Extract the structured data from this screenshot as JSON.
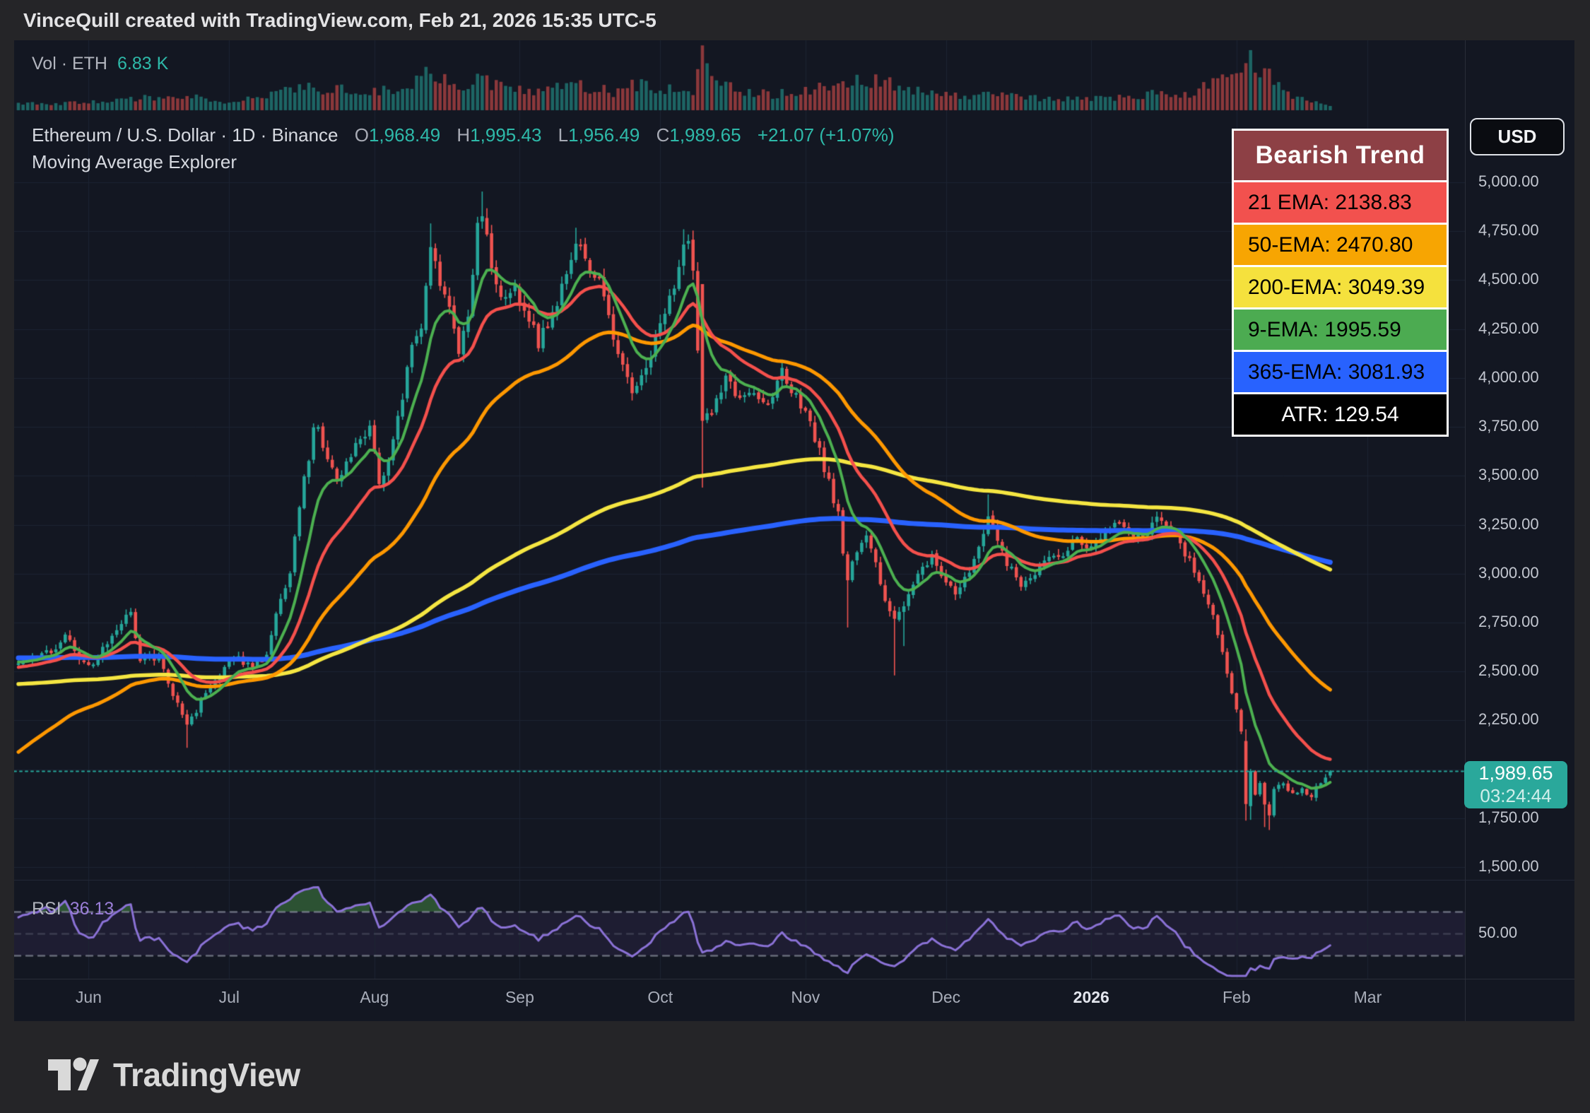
{
  "header": {
    "attribution": "VinceQuill created with TradingView.com, Feb 21, 2026 15:35 UTC-5"
  },
  "volume_pane": {
    "label": "Vol · ETH",
    "value": "6.83 K"
  },
  "symbol_line": {
    "name": "Ethereum / U.S. Dollar · 1D · Binance",
    "o_label": "O",
    "o": "1,968.49",
    "h_label": "H",
    "h": "1,995.43",
    "l_label": "L",
    "l": "1,956.49",
    "c_label": "C",
    "c": "1,989.65",
    "change": "+21.07 (+1.07%)"
  },
  "indicator_line": {
    "name": "Moving Average Explorer"
  },
  "rsi_pane": {
    "label": "RSI",
    "value": "36.13"
  },
  "price_scale": {
    "currency": "USD",
    "ticks": [
      {
        "label": "5,000.00",
        "value": 5000
      },
      {
        "label": "4,750.00",
        "value": 4750
      },
      {
        "label": "4,500.00",
        "value": 4500
      },
      {
        "label": "4,250.00",
        "value": 4250
      },
      {
        "label": "4,000.00",
        "value": 4000
      },
      {
        "label": "3,750.00",
        "value": 3750
      },
      {
        "label": "3,500.00",
        "value": 3500
      },
      {
        "label": "3,250.00",
        "value": 3250
      },
      {
        "label": "3,000.00",
        "value": 3000
      },
      {
        "label": "2,750.00",
        "value": 2750
      },
      {
        "label": "2,500.00",
        "value": 2500
      },
      {
        "label": "2,250.00",
        "value": 2250
      },
      {
        "label": "1,750.00",
        "value": 1750
      },
      {
        "label": "1,500.00",
        "value": 1500
      }
    ],
    "rsi_tick": {
      "label": "50.00",
      "value": 50
    },
    "price_tag": {
      "price": "1,989.65",
      "countdown": "03:24:44",
      "bg": "#2aa89b"
    }
  },
  "time_scale": {
    "labels": [
      {
        "label": "Jun",
        "day": 15
      },
      {
        "label": "Jul",
        "day": 45
      },
      {
        "label": "Aug",
        "day": 76
      },
      {
        "label": "Sep",
        "day": 107
      },
      {
        "label": "Oct",
        "day": 137
      },
      {
        "label": "Nov",
        "day": 168
      },
      {
        "label": "Dec",
        "day": 198
      },
      {
        "label": "2026",
        "day": 229,
        "bold": true
      },
      {
        "label": "Feb",
        "day": 260
      },
      {
        "label": "Mar",
        "day": 288
      }
    ]
  },
  "trend_box": {
    "title": {
      "text": "Bearish Trend",
      "bg": "#8d4045",
      "color": "#ffffff"
    },
    "rows": [
      {
        "text": "21 EMA: 2138.83",
        "bg": "#f2514e",
        "color": "#000000"
      },
      {
        "text": "50-EMA: 2470.80",
        "bg": "#f7a502",
        "color": "#000000"
      },
      {
        "text": "200-EMA: 3049.39",
        "bg": "#f5e13d",
        "color": "#000000"
      },
      {
        "text": "9-EMA: 1995.59",
        "bg": "#4cab51",
        "color": "#000000"
      },
      {
        "text": "365-EMA: 3081.93",
        "bg": "#2862fe",
        "color": "#000000"
      },
      {
        "text": "ATR: 129.54",
        "bg": "#000000",
        "color": "#ffffff",
        "center": true
      }
    ]
  },
  "footer": {
    "brand": "TradingView"
  },
  "chart_data": {
    "type": "candlestick",
    "symbol": "ETH/USD",
    "interval": "1D",
    "title": "Ethereum / U.S. Dollar · 1D · Binance",
    "days": 281,
    "ylim": [
      1380,
      5260
    ],
    "price_axis_step": 250,
    "current_price": 1989.65,
    "last_candle": {
      "open": 1968.49,
      "high": 1995.43,
      "low": 1956.49,
      "close": 1989.65
    },
    "close_anchors": [
      [
        0,
        2550
      ],
      [
        8,
        2615
      ],
      [
        10,
        2700
      ],
      [
        13,
        2560
      ],
      [
        15,
        2520
      ],
      [
        19,
        2650
      ],
      [
        22,
        2760
      ],
      [
        24,
        2820
      ],
      [
        26,
        2560
      ],
      [
        30,
        2575
      ],
      [
        33,
        2390
      ],
      [
        36,
        2240
      ],
      [
        38,
        2305
      ],
      [
        42,
        2470
      ],
      [
        46,
        2580
      ],
      [
        50,
        2515
      ],
      [
        53,
        2590
      ],
      [
        55,
        2780
      ],
      [
        58,
        3010
      ],
      [
        61,
        3480
      ],
      [
        63,
        3720
      ],
      [
        64,
        3740
      ],
      [
        66,
        3600
      ],
      [
        68,
        3480
      ],
      [
        70,
        3560
      ],
      [
        72,
        3660
      ],
      [
        75,
        3740
      ],
      [
        77,
        3470
      ],
      [
        78,
        3520
      ],
      [
        80,
        3680
      ],
      [
        82,
        3900
      ],
      [
        84,
        4160
      ],
      [
        86,
        4280
      ],
      [
        88,
        4700
      ],
      [
        90,
        4440
      ],
      [
        92,
        4360
      ],
      [
        94,
        4140
      ],
      [
        96,
        4330
      ],
      [
        98,
        4780
      ],
      [
        99,
        4850
      ],
      [
        101,
        4560
      ],
      [
        103,
        4400
      ],
      [
        106,
        4460
      ],
      [
        109,
        4310
      ],
      [
        111,
        4180
      ],
      [
        115,
        4380
      ],
      [
        119,
        4720
      ],
      [
        121,
        4620
      ],
      [
        124,
        4480
      ],
      [
        127,
        4200
      ],
      [
        131,
        3950
      ],
      [
        134,
        4050
      ],
      [
        137,
        4250
      ],
      [
        140,
        4480
      ],
      [
        142,
        4650
      ],
      [
        143,
        4690
      ],
      [
        144,
        4550
      ],
      [
        146,
        3760
      ],
      [
        148,
        3840
      ],
      [
        151,
        4010
      ],
      [
        154,
        3870
      ],
      [
        157,
        3940
      ],
      [
        160,
        3860
      ],
      [
        163,
        4040
      ],
      [
        166,
        3900
      ],
      [
        169,
        3780
      ],
      [
        171,
        3620
      ],
      [
        173,
        3460
      ],
      [
        175,
        3300
      ],
      [
        176,
        3100
      ],
      [
        177,
        2960
      ],
      [
        179,
        3120
      ],
      [
        181,
        3200
      ],
      [
        183,
        3050
      ],
      [
        185,
        2870
      ],
      [
        187,
        2760
      ],
      [
        189,
        2850
      ],
      [
        191,
        2940
      ],
      [
        193,
        3020
      ],
      [
        195,
        3080
      ],
      [
        198,
        2960
      ],
      [
        200,
        2890
      ],
      [
        203,
        3000
      ],
      [
        205,
        3120
      ],
      [
        207,
        3280
      ],
      [
        209,
        3180
      ],
      [
        211,
        3060
      ],
      [
        214,
        2940
      ],
      [
        217,
        3000
      ],
      [
        220,
        3080
      ],
      [
        223,
        3110
      ],
      [
        226,
        3170
      ],
      [
        229,
        3140
      ],
      [
        232,
        3210
      ],
      [
        235,
        3270
      ],
      [
        237,
        3210
      ],
      [
        240,
        3170
      ],
      [
        243,
        3300
      ],
      [
        245,
        3260
      ],
      [
        248,
        3140
      ],
      [
        251,
        3020
      ],
      [
        254,
        2860
      ],
      [
        256,
        2680
      ],
      [
        258,
        2500
      ],
      [
        260,
        2290
      ],
      [
        261,
        2180
      ],
      [
        262,
        1815
      ],
      [
        263,
        1988
      ],
      [
        264,
        1870
      ],
      [
        265,
        1940
      ],
      [
        266,
        1832
      ],
      [
        267,
        1775
      ],
      [
        268,
        1895
      ],
      [
        270,
        1930
      ],
      [
        272,
        1870
      ],
      [
        274,
        1905
      ],
      [
        276,
        1862
      ],
      [
        278,
        1940
      ],
      [
        280,
        1989.65
      ]
    ],
    "overrides": {
      "36": {
        "low": 2110
      },
      "88": {
        "high": 4790
      },
      "99": {
        "high": 4953
      },
      "119": {
        "high": 4768
      },
      "131": {
        "low": 3885
      },
      "142": {
        "high": 4760
      },
      "146": {
        "open": 4480,
        "low": 3440
      },
      "177": {
        "low": 2725
      },
      "187": {
        "low": 2480
      },
      "189": {
        "low": 2630
      },
      "207": {
        "high": 3405
      },
      "262": {
        "open": 2145,
        "low": 1738
      },
      "263": {
        "open": 1812,
        "low": 1742
      },
      "266": {
        "low": 1705
      },
      "267": {
        "low": 1690
      },
      "280": {
        "open": 1968.49,
        "high": 1995.43,
        "low": 1956.49,
        "close": 1989.65
      }
    },
    "volume_anchors": [
      [
        0,
        10
      ],
      [
        15,
        12
      ],
      [
        24,
        18
      ],
      [
        36,
        22
      ],
      [
        45,
        12
      ],
      [
        55,
        25
      ],
      [
        61,
        38
      ],
      [
        64,
        35
      ],
      [
        72,
        30
      ],
      [
        77,
        32
      ],
      [
        84,
        40
      ],
      [
        88,
        58
      ],
      [
        94,
        38
      ],
      [
        98,
        52
      ],
      [
        99,
        55
      ],
      [
        103,
        35
      ],
      [
        112,
        28
      ],
      [
        119,
        42
      ],
      [
        127,
        30
      ],
      [
        131,
        40
      ],
      [
        140,
        32
      ],
      [
        144,
        28
      ],
      [
        146,
        100
      ],
      [
        148,
        45
      ],
      [
        154,
        30
      ],
      [
        160,
        25
      ],
      [
        166,
        28
      ],
      [
        171,
        38
      ],
      [
        175,
        42
      ],
      [
        181,
        45
      ],
      [
        185,
        48
      ],
      [
        188,
        42
      ],
      [
        193,
        30
      ],
      [
        198,
        25
      ],
      [
        203,
        22
      ],
      [
        208,
        24
      ],
      [
        214,
        20
      ],
      [
        220,
        18
      ],
      [
        226,
        20
      ],
      [
        232,
        18
      ],
      [
        237,
        22
      ],
      [
        243,
        26
      ],
      [
        248,
        22
      ],
      [
        251,
        28
      ],
      [
        254,
        38
      ],
      [
        256,
        48
      ],
      [
        258,
        55
      ],
      [
        260,
        62
      ],
      [
        261,
        58
      ],
      [
        262,
        78
      ],
      [
        263,
        96
      ],
      [
        264,
        60
      ],
      [
        265,
        55
      ],
      [
        266,
        70
      ],
      [
        267,
        52
      ],
      [
        268,
        48
      ],
      [
        270,
        32
      ],
      [
        272,
        25
      ],
      [
        274,
        20
      ],
      [
        276,
        16
      ],
      [
        278,
        12
      ],
      [
        280,
        6.83
      ]
    ],
    "volume_last_label": "6.83 K",
    "emas": [
      {
        "name": "365-EMA",
        "period": 365,
        "seed": 2570,
        "color": "#2962ff",
        "width": 7,
        "last": 3081.93
      },
      {
        "name": "200-EMA",
        "period": 200,
        "seed": 2435,
        "color": "#f5e642",
        "width": 5.5,
        "last": 3049.39
      },
      {
        "name": "50-EMA",
        "period": 50,
        "seed": 2070,
        "color": "#ff9800",
        "width": 5,
        "last": 2470.8
      },
      {
        "name": "21 EMA",
        "period": 21,
        "seed": 2520,
        "color": "#f4504c",
        "width": 4.5,
        "last": 2138.83
      },
      {
        "name": "9-EMA",
        "period": 9,
        "seed": 2550,
        "color": "#4cb050",
        "width": 4,
        "last": 1995.59
      }
    ],
    "atr": 129.54,
    "rsi": {
      "period": 14,
      "color": "#8b72d6",
      "overbought": 70,
      "oversold": 50,
      "lower": 30,
      "last": 36.13
    },
    "colors": {
      "up": "#26a69a",
      "down": "#ef5350",
      "vol_up": "rgba(38,166,154,0.55)",
      "vol_down": "rgba(239,83,80,0.55)",
      "grid": "#1d2433",
      "bg": "#131722",
      "dotted_line": "#26a69a",
      "rsi_band": "rgba(126,87,194,0.10)",
      "rsi_dash": "rgba(170,175,190,0.55)",
      "rsi_mid_dash": "rgba(170,175,190,0.22)",
      "rsi_overbought_fill": "rgba(62,122,63,0.60)"
    }
  }
}
